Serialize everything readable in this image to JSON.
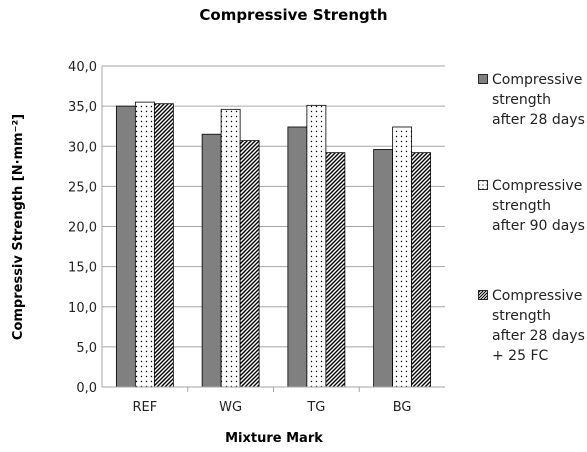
{
  "chart_data": {
    "type": "bar",
    "title": "Compressive Strength",
    "xlabel": "Mixture Mark",
    "ylabel": "Compressiv Strength [N·mm⁻²]",
    "categories": [
      "REF",
      "WG",
      "TG",
      "BG"
    ],
    "ylim": [
      0,
      40
    ],
    "yticks": [
      "0,0",
      "5,0",
      "10,0",
      "15,0",
      "20,0",
      "25,0",
      "30,0",
      "35,0",
      "40,0"
    ],
    "grid": true,
    "legend_position": "right",
    "series": [
      {
        "name": "Compressive strength after 28 days",
        "pattern": "solid",
        "color": "#808080",
        "values": [
          35.0,
          31.5,
          32.4,
          29.6
        ]
      },
      {
        "name": "Compressive strength after 90  days",
        "pattern": "dots",
        "color": "#ffffff",
        "values": [
          35.5,
          34.6,
          35.1,
          32.4
        ]
      },
      {
        "name": "Compressive strength after 28 days + 25 FC",
        "pattern": "diagonal-hatch",
        "color": "#000000",
        "values": [
          35.3,
          30.7,
          29.2,
          29.2
        ]
      }
    ]
  }
}
